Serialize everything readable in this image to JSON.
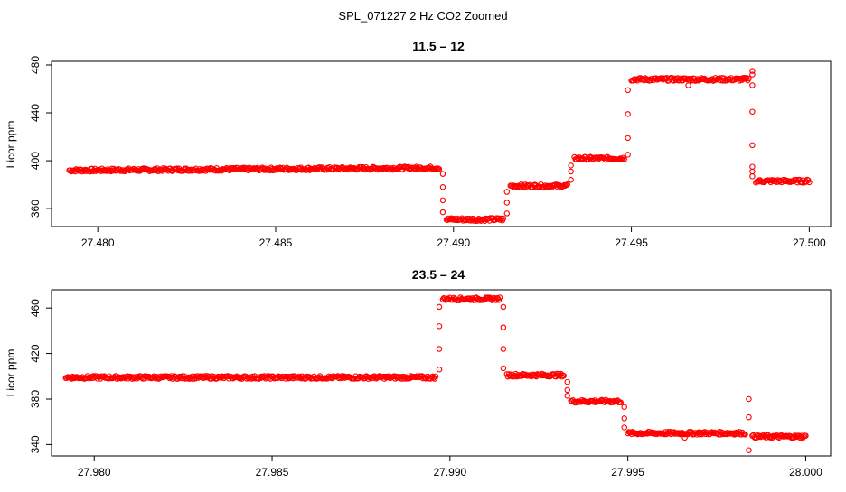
{
  "figure": {
    "title": "SPL_071227  2 Hz CO2 Zoomed"
  },
  "colors": {
    "points": "#ff0000",
    "axes": "#000000"
  },
  "chart_data": [
    {
      "type": "scatter",
      "title": "11.5 – 12",
      "xlabel": "",
      "ylabel": "Licor ppm",
      "xlim": [
        27.4787,
        27.5006
      ],
      "ylim": [
        345,
        483
      ],
      "x_ticks": [
        27.48,
        27.485,
        27.49,
        27.495,
        27.5
      ],
      "x_tick_labels": [
        "27.480",
        "27.485",
        "27.490",
        "27.495",
        "27.500"
      ],
      "y_ticks": [
        360,
        400,
        440,
        480
      ],
      "y_tick_labels": [
        "360",
        "400",
        "440",
        "480"
      ],
      "grid": false,
      "legend": "none",
      "marker": "open-circle",
      "segments": [
        {
          "x_start": 27.4792,
          "x_end": 27.4896,
          "y_start": 392,
          "y_end": 394
        },
        {
          "x_start": 27.4898,
          "x_end": 27.4914,
          "y_start": 351,
          "y_end": 351
        },
        {
          "x_start": 27.4916,
          "x_end": 27.4932,
          "y_start": 379,
          "y_end": 379
        },
        {
          "x_start": 27.4934,
          "x_end": 27.4948,
          "y_start": 402,
          "y_end": 402
        },
        {
          "x_start": 27.495,
          "x_end": 27.4983,
          "y_start": 468,
          "y_end": 468
        },
        {
          "x_start": 27.4985,
          "x_end": 27.5,
          "y_start": 383,
          "y_end": 383
        }
      ],
      "transitions": [
        {
          "x": 27.4897,
          "y": [
            389,
            378,
            367,
            357
          ]
        },
        {
          "x": 27.4915,
          "y": [
            356,
            365,
            374
          ]
        },
        {
          "x": 27.4933,
          "y": [
            384,
            391,
            396
          ]
        },
        {
          "x": 27.4949,
          "y": [
            405,
            419,
            439,
            459
          ]
        },
        {
          "x": 27.4984,
          "y": [
            475,
            472,
            463,
            441,
            413,
            395,
            391,
            387
          ]
        }
      ],
      "outliers": [
        {
          "x": 27.4966,
          "y": 463
        }
      ]
    },
    {
      "type": "scatter",
      "title": "23.5 – 24",
      "xlabel": "",
      "ylabel": "Licor ppm",
      "xlim": [
        27.9788,
        28.0007
      ],
      "ylim": [
        330,
        476
      ],
      "x_ticks": [
        27.98,
        27.985,
        27.99,
        27.995,
        28.0
      ],
      "x_tick_labels": [
        "27.980",
        "27.985",
        "27.990",
        "27.995",
        "28.000"
      ],
      "y_ticks": [
        340,
        380,
        420,
        460
      ],
      "y_tick_labels": [
        "340",
        "380",
        "420",
        "460"
      ],
      "grid": false,
      "legend": "none",
      "marker": "open-circle",
      "segments": [
        {
          "x_start": 27.9792,
          "x_end": 27.9896,
          "y_start": 399,
          "y_end": 399
        },
        {
          "x_start": 27.9898,
          "x_end": 27.9914,
          "y_start": 468,
          "y_end": 468
        },
        {
          "x_start": 27.9916,
          "x_end": 27.9932,
          "y_start": 401,
          "y_end": 401
        },
        {
          "x_start": 27.9934,
          "x_end": 27.9948,
          "y_start": 378,
          "y_end": 378
        },
        {
          "x_start": 27.995,
          "x_end": 27.9983,
          "y_start": 350,
          "y_end": 350
        },
        {
          "x_start": 27.9985,
          "x_end": 28.0,
          "y_start": 347,
          "y_end": 347
        }
      ],
      "transitions": [
        {
          "x": 27.9897,
          "y": [
            406,
            424,
            444,
            461
          ]
        },
        {
          "x": 27.9915,
          "y": [
            461,
            443,
            424,
            407
          ]
        },
        {
          "x": 27.9933,
          "y": [
            395,
            388,
            383
          ]
        },
        {
          "x": 27.9949,
          "y": [
            373,
            363,
            355
          ]
        },
        {
          "x": 27.9984,
          "y": [
            380,
            364,
            335
          ]
        }
      ],
      "outliers": [
        {
          "x": 27.9966,
          "y": 346
        }
      ]
    }
  ]
}
